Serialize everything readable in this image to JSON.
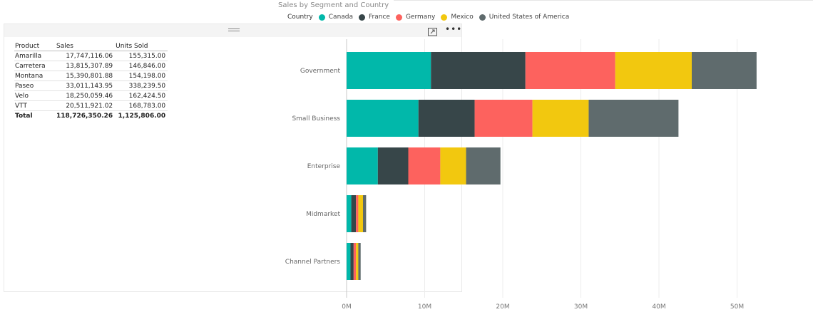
{
  "chart_data": {
    "type": "bar",
    "orientation": "horizontal",
    "stacked": true,
    "title": "Sales by Segment and Country",
    "legend_title": "Country",
    "legend_position": "top",
    "categories": [
      "Government",
      "Small Business",
      "Enterprise",
      "Midmarket",
      "Channel Partners"
    ],
    "series": [
      {
        "name": "Canada",
        "color": "#01B8AA",
        "values": [
          10.8,
          9.2,
          4.0,
          0.6,
          0.5
        ]
      },
      {
        "name": "France",
        "color": "#374649",
        "values": [
          12.1,
          7.2,
          3.9,
          0.6,
          0.4
        ]
      },
      {
        "name": "Germany",
        "color": "#FD625E",
        "values": [
          11.5,
          7.4,
          4.1,
          0.3,
          0.3
        ]
      },
      {
        "name": "Mexico",
        "color": "#F2C80F",
        "values": [
          9.8,
          7.2,
          3.3,
          0.6,
          0.3
        ]
      },
      {
        "name": "United States of America",
        "color": "#5F6B6D",
        "values": [
          8.3,
          11.5,
          4.4,
          0.4,
          0.3
        ]
      }
    ],
    "x_ticks": [
      "0M",
      "10M",
      "20M",
      "30M",
      "40M",
      "50M"
    ],
    "xlim": [
      0,
      55
    ],
    "grid": true
  },
  "table": {
    "columns": [
      "Product",
      "Sales",
      "Units Sold"
    ],
    "rows": [
      [
        "Amarilla",
        "17,747,116.06",
        "155,315.00"
      ],
      [
        "Carretera",
        "13,815,307.89",
        "146,846.00"
      ],
      [
        "Montana",
        "15,390,801.88",
        "154,198.00"
      ],
      [
        "Paseo",
        "33,011,143.95",
        "338,239.50"
      ],
      [
        "Velo",
        "18,250,059.46",
        "162,424.50"
      ],
      [
        "VTT",
        "20,511,921.02",
        "168,783.00"
      ]
    ],
    "total": [
      "Total",
      "118,726,350.26",
      "1,125,806.00"
    ]
  },
  "icons": {
    "grip": "drag-handle-icon",
    "focus": "focus-mode-icon",
    "more": "more-options-icon"
  }
}
